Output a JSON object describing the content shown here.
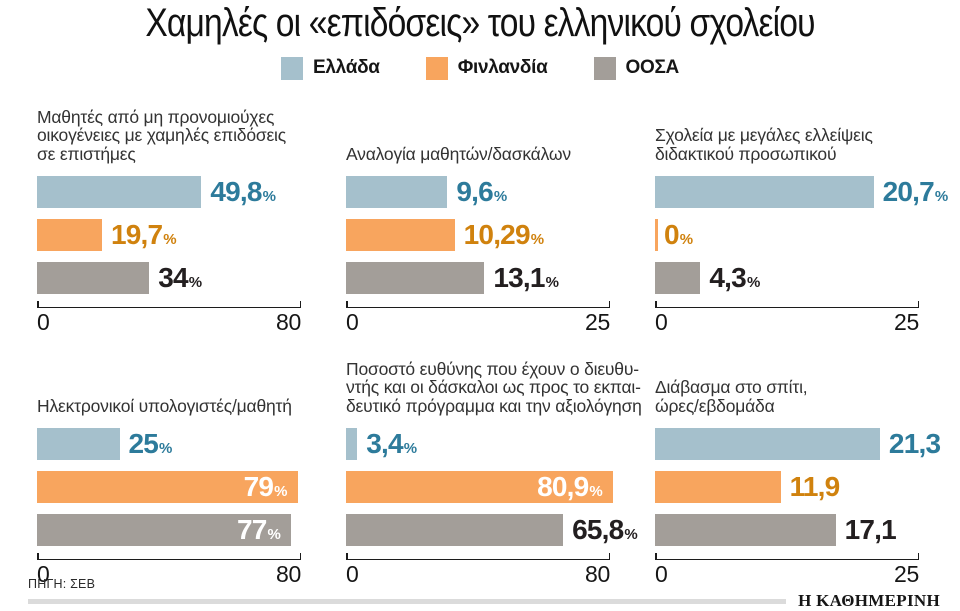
{
  "page": {
    "title": "Χαμηλές οι «επιδόσεις» του ελληνικού σχολείου",
    "source": "ΠΗΓΗ: ΣΕΒ",
    "logo": "Η ΚΑΘΗΜΕΡΙΝΗ"
  },
  "colors": {
    "greece": "#a5c0cc",
    "finland": "#f8a55e",
    "oecd": "#a39e99",
    "greece_text": "#2d7b9b",
    "finland_text": "#d0820e",
    "oecd_text": "#231f20",
    "inside_text": "#ffffff",
    "axis": "#1c1c1c",
    "rule": "#dbdbdb"
  },
  "legend": [
    {
      "label": "Ελλάδα",
      "color_key": "greece"
    },
    {
      "label": "Φινλανδία",
      "color_key": "finland"
    },
    {
      "label": "ΟΟΣΑ",
      "color_key": "oecd"
    }
  ],
  "chart_data": [
    {
      "type": "bar",
      "orientation": "horizontal",
      "title": "Μαθητές από μη προνομιούχες οικογένειες με χαμηλές επιδόσεις σε επιστήμες",
      "title_lines": [
        "Μαθητές από μη προνομιούχες",
        "οικογένειες με χαμηλές επιδόσεις",
        "σε επιστήμες"
      ],
      "categories": [
        "Ελλάδα",
        "Φινλανδία",
        "ΟΟΣΑ"
      ],
      "values": [
        49.8,
        19.7,
        34
      ],
      "labels": [
        "49,8",
        "19,7",
        "34"
      ],
      "suffix": "%",
      "xlim": [
        0,
        80
      ],
      "axis_labels": [
        "0",
        "80"
      ],
      "label_placement": [
        "outside",
        "outside",
        "outside"
      ]
    },
    {
      "type": "bar",
      "orientation": "horizontal",
      "title": "Αναλογία μαθητών/δασκάλων",
      "title_lines": [
        "Αναλογία μαθητών/δασκάλων"
      ],
      "categories": [
        "Ελλάδα",
        "Φινλανδία",
        "ΟΟΣΑ"
      ],
      "values": [
        9.6,
        10.29,
        13.1
      ],
      "labels": [
        "9,6",
        "10,29",
        "13,1"
      ],
      "suffix": "%",
      "xlim": [
        0,
        25
      ],
      "axis_labels": [
        "0",
        "25"
      ],
      "label_placement": [
        "outside",
        "outside",
        "outside"
      ]
    },
    {
      "type": "bar",
      "orientation": "horizontal",
      "title": "Σχολεία με μεγάλες ελλείψεις διδακτικού προσωπικού",
      "title_lines": [
        "Σχολεία με μεγάλες ελλείψεις",
        "διδακτικού προσωπικού"
      ],
      "categories": [
        "Ελλάδα",
        "Φινλανδία",
        "ΟΟΣΑ"
      ],
      "values": [
        20.7,
        0,
        4.3
      ],
      "labels": [
        "20,7",
        "0",
        "4,3"
      ],
      "suffix": "%",
      "xlim": [
        0,
        25
      ],
      "axis_labels": [
        "0",
        "25"
      ],
      "label_placement": [
        "outside",
        "outside",
        "outside"
      ]
    },
    {
      "type": "bar",
      "orientation": "horizontal",
      "title": "Ηλεκτρονικοί υπολογιστές/μαθητή",
      "title_lines": [
        "Ηλεκτρονικοί υπολογιστές/μαθητή"
      ],
      "categories": [
        "Ελλάδα",
        "Φινλανδία",
        "ΟΟΣΑ"
      ],
      "values": [
        25,
        79,
        77
      ],
      "labels": [
        "25",
        "79",
        "77"
      ],
      "suffix": "%",
      "xlim": [
        0,
        80
      ],
      "axis_labels": [
        "0",
        "80"
      ],
      "label_placement": [
        "outside",
        "inside",
        "inside"
      ]
    },
    {
      "type": "bar",
      "orientation": "horizontal",
      "title": "Ποσοστό ευθύνης που έχουν ο διευθυντής και οι δάσκαλοι ως προς το εκπαιδευτικό πρόγραμμα και την αξιολόγηση",
      "title_lines": [
        "Ποσοστό ευθύνης που έχουν ο διευθυ-",
        "ντής και οι δάσκαλοι ως προς το εκπαι-",
        "δευτικό πρόγραμμα και την αξιολόγηση"
      ],
      "categories": [
        "Ελλάδα",
        "Φινλανδία",
        "ΟΟΣΑ"
      ],
      "values": [
        3.4,
        80.9,
        65.8
      ],
      "labels": [
        "3,4",
        "80,9",
        "65,8"
      ],
      "suffix": "%",
      "xlim": [
        0,
        80
      ],
      "axis_labels": [
        "0",
        "80"
      ],
      "label_placement": [
        "outside",
        "inside",
        "outside"
      ]
    },
    {
      "type": "bar",
      "orientation": "horizontal",
      "title": "Διάβασμα στο σπίτι, ώρες/εβδομάδα",
      "title_lines": [
        "Διάβασμα στο σπίτι,",
        "ώρες/εβδομάδα"
      ],
      "categories": [
        "Ελλάδα",
        "Φινλανδία",
        "ΟΟΣΑ"
      ],
      "values": [
        21.3,
        11.9,
        17.1
      ],
      "labels": [
        "21,3",
        "11,9",
        "17,1"
      ],
      "suffix": "",
      "xlim": [
        0,
        25
      ],
      "axis_labels": [
        "0",
        "25"
      ],
      "label_placement": [
        "outside",
        "outside",
        "outside"
      ]
    }
  ]
}
